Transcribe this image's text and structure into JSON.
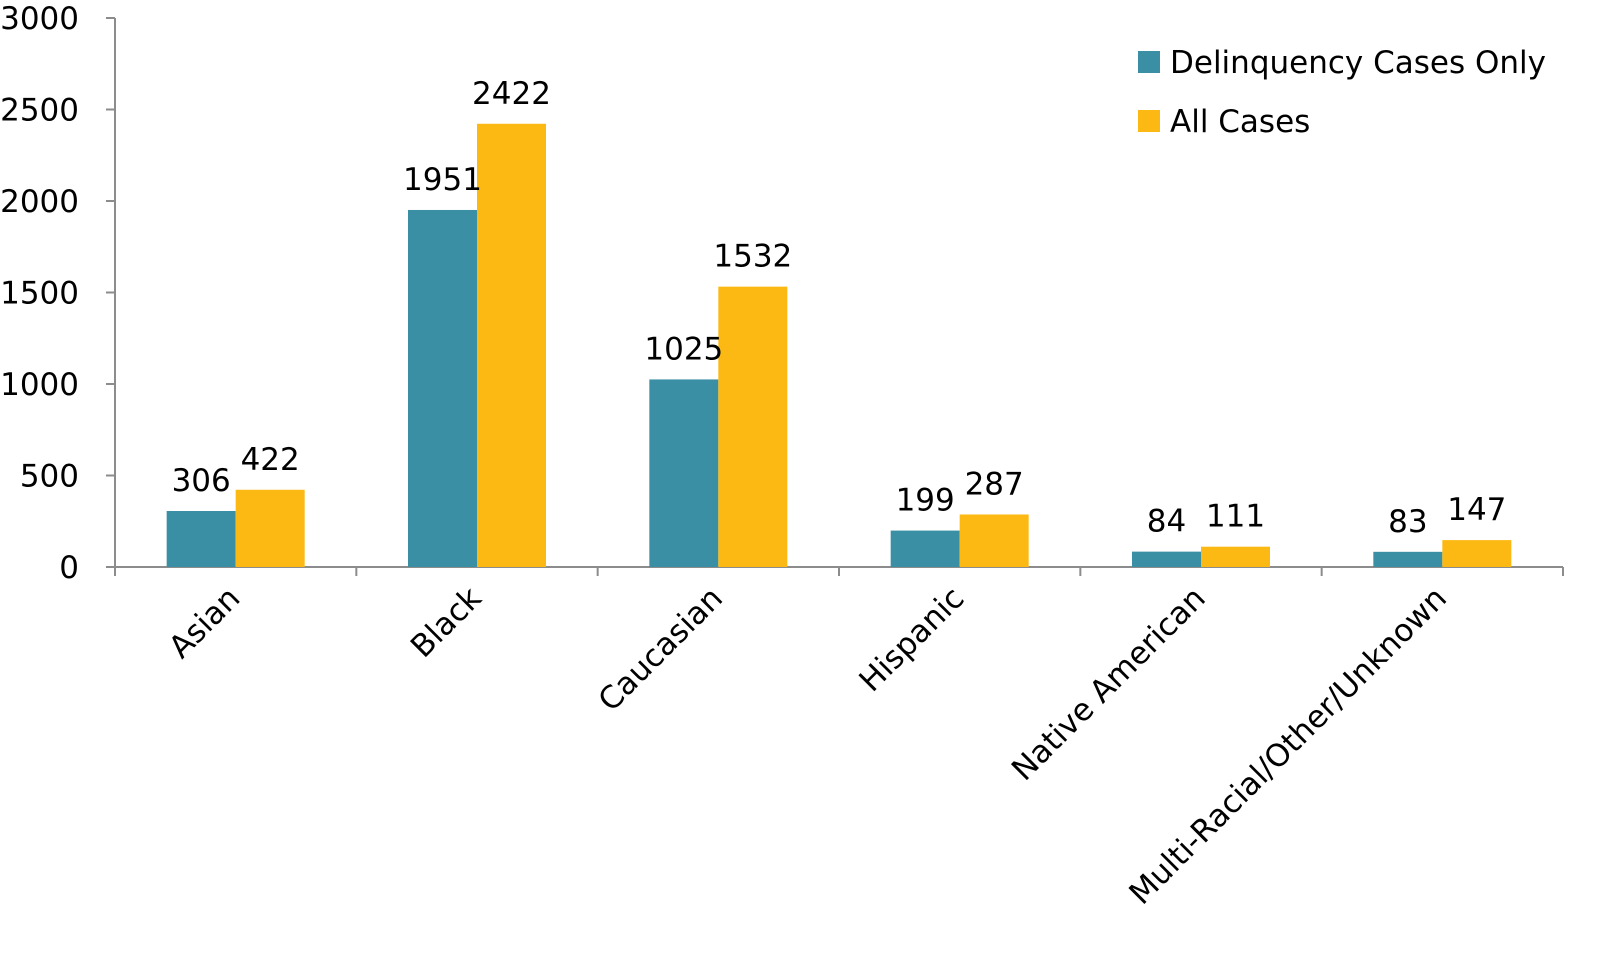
{
  "chart_data": {
    "type": "bar",
    "categories": [
      "Asian",
      "Black",
      "Caucasian",
      "Hispanic",
      "Native American",
      "Multi-Racial/Other/Unknown"
    ],
    "series": [
      {
        "name": "Delinquency Cases Only",
        "color": "#3a8fa5",
        "values": [
          306,
          1951,
          1025,
          199,
          84,
          83
        ]
      },
      {
        "name": "All Cases",
        "color": "#fdb913",
        "values": [
          422,
          2422,
          1532,
          287,
          111,
          147
        ]
      }
    ],
    "y_ticks": [
      "0",
      "500",
      "1000",
      "1500",
      "2000",
      "2500",
      "3000"
    ],
    "ylim": [
      0,
      3000
    ],
    "title": "",
    "xlabel": "",
    "ylabel": "",
    "legend_position": "top-right",
    "grid": false
  }
}
